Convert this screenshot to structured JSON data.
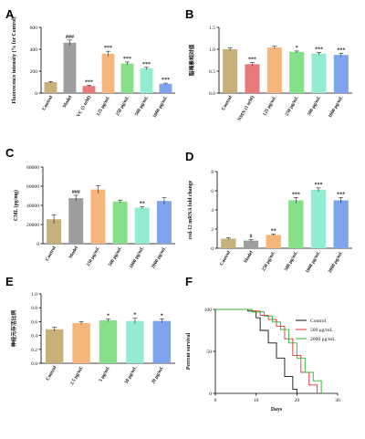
{
  "chart_data": [
    {
      "id": "A",
      "type": "bar",
      "panel_label": "A",
      "ylabel": "Fluorescence intensity (% for Control)",
      "ylim": [
        0,
        600
      ],
      "yticks": [
        0,
        200,
        400,
        600
      ],
      "ytick_labels": [
        "0",
        "200",
        "400",
        "600"
      ],
      "categories": [
        "Control",
        "Model",
        "VC (5 mM)",
        "125 μg/mL",
        "250 μg/mL",
        "500 μg/mL",
        "1000 μg/mL"
      ],
      "values": [
        100,
        460,
        65,
        360,
        270,
        225,
        85
      ],
      "errors": [
        6,
        25,
        6,
        22,
        14,
        10,
        6
      ],
      "annotations": [
        "",
        "###",
        "***",
        "***",
        "***",
        "***",
        "***"
      ],
      "colors": [
        "#c8b07a",
        "#9e9e9e",
        "#e87a7a",
        "#f6b57a",
        "#86e08a",
        "#93ecd2",
        "#7fa3ec"
      ]
    },
    {
      "id": "B",
      "type": "bar",
      "panel_label": "B",
      "ylabel": "脂褐素相对值",
      "ylim": [
        0,
        1.5
      ],
      "yticks": [
        0,
        0.5,
        1.0,
        1.5
      ],
      "ytick_labels": [
        "0.0",
        "0.5",
        "1.0",
        "1.5"
      ],
      "categories": [
        "Control",
        "NMN (1 mM)",
        "125 μg/mL",
        "250 μg/mL",
        "500 μg/mL",
        "1000 μg/mL"
      ],
      "values": [
        1.0,
        0.66,
        1.04,
        0.94,
        0.9,
        0.87
      ],
      "errors": [
        0.03,
        0.04,
        0.03,
        0.02,
        0.03,
        0.04
      ],
      "annotations": [
        "",
        "***",
        "",
        "*",
        "***",
        "***"
      ],
      "colors": [
        "#c8b07a",
        "#e87a7a",
        "#f6b57a",
        "#86e08a",
        "#93ecd2",
        "#7fa3ec"
      ]
    },
    {
      "id": "C",
      "type": "bar",
      "panel_label": "C",
      "ylabel": "CML (pg/mg)",
      "ylim": [
        0,
        80000
      ],
      "yticks": [
        0,
        20000,
        40000,
        60000,
        80000
      ],
      "ytick_labels": [
        "0",
        "20000",
        "40000",
        "60000",
        "80000"
      ],
      "categories": [
        "Control",
        "Model",
        "250 μg/mL",
        "500 μg/mL",
        "1000 μg/mL",
        "2000 μg/mL"
      ],
      "values": [
        25500,
        47500,
        56500,
        44000,
        37500,
        44500
      ],
      "errors": [
        4500,
        3000,
        4000,
        1500,
        1000,
        3500
      ],
      "annotations": [
        "",
        "###",
        "",
        "",
        "**",
        ""
      ],
      "colors": [
        "#c8b07a",
        "#9e9e9e",
        "#f6b57a",
        "#86e08a",
        "#93ecd2",
        "#7fa3ec"
      ]
    },
    {
      "id": "D",
      "type": "bar",
      "panel_label": "D",
      "ylabel": "ced-12 mRNA fold change",
      "ylim": [
        0,
        8
      ],
      "yticks": [
        0,
        2,
        4,
        6,
        8
      ],
      "ytick_labels": [
        "0",
        "2",
        "4",
        "6",
        "8"
      ],
      "categories": [
        "Control",
        "Model",
        "250 μg/mL",
        "500 μg/mL",
        "1000 μg/mL",
        "2000 μg/mL"
      ],
      "values": [
        1.0,
        0.8,
        1.4,
        5.0,
        6.1,
        5.0
      ],
      "errors": [
        0.1,
        0.1,
        0.1,
        0.3,
        0.2,
        0.3
      ],
      "annotations": [
        "",
        "#",
        "**",
        "***",
        "***",
        "***"
      ],
      "colors": [
        "#c8b07a",
        "#9e9e9e",
        "#f6b57a",
        "#86e08a",
        "#93ecd2",
        "#7fa3ec"
      ]
    },
    {
      "id": "E",
      "type": "bar",
      "panel_label": "E",
      "ylabel": "神经元存活比例",
      "ylim": [
        0,
        1.0
      ],
      "yticks": [
        0,
        0.2,
        0.4,
        0.6,
        0.8,
        1.0
      ],
      "ytick_labels": [
        "0.0",
        "0.2",
        "0.4",
        "0.6",
        "0.8",
        "1.0"
      ],
      "categories": [
        "Control",
        "2.5 μg/mL",
        "5 μg/mL",
        "10 μg/mL",
        "20 μg/mL"
      ],
      "values": [
        0.49,
        0.58,
        0.62,
        0.61,
        0.61
      ],
      "errors": [
        0.03,
        0.02,
        0.02,
        0.04,
        0.03
      ],
      "annotations": [
        "",
        "",
        "*",
        "*",
        "*"
      ],
      "colors": [
        "#c8b07a",
        "#f6b57a",
        "#86e08a",
        "#93ecd2",
        "#7fa3ec"
      ]
    },
    {
      "id": "F",
      "type": "line",
      "step": true,
      "panel_label": "F",
      "xlabel": "Days",
      "ylabel": "Percent survival",
      "xlim": [
        0,
        30
      ],
      "ylim": [
        0,
        100
      ],
      "xticks": [
        0,
        10,
        20,
        30
      ],
      "yticks": [
        0,
        50,
        100
      ],
      "legend_position": "top-right",
      "series": [
        {
          "name": "Control",
          "color": "#111111",
          "x": [
            0,
            8,
            10,
            11,
            13,
            15,
            17,
            19,
            20
          ],
          "y": [
            100,
            98,
            90,
            75,
            60,
            42,
            20,
            5,
            0
          ]
        },
        {
          "name": "500 μg/mL",
          "color": "#e03030",
          "x": [
            0,
            9,
            11,
            13,
            15,
            17,
            19,
            21,
            23,
            25
          ],
          "y": [
            100,
            98,
            93,
            88,
            80,
            65,
            45,
            25,
            10,
            0
          ]
        },
        {
          "name": "2000 μg/mL",
          "color": "#30b030",
          "x": [
            0,
            9,
            12,
            14,
            16,
            18,
            20,
            22,
            24,
            26
          ],
          "y": [
            100,
            97,
            92,
            85,
            76,
            60,
            42,
            25,
            15,
            0
          ]
        }
      ]
    }
  ]
}
